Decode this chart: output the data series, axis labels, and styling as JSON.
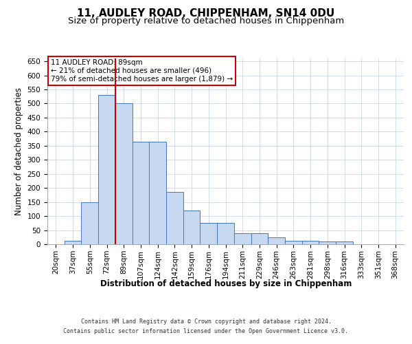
{
  "title": "11, AUDLEY ROAD, CHIPPENHAM, SN14 0DU",
  "subtitle": "Size of property relative to detached houses in Chippenham",
  "xlabel": "Distribution of detached houses by size in Chippenham",
  "ylabel": "Number of detached properties",
  "footer_line1": "Contains HM Land Registry data © Crown copyright and database right 2024.",
  "footer_line2": "Contains public sector information licensed under the Open Government Licence v3.0.",
  "categories": [
    "20sqm",
    "37sqm",
    "55sqm",
    "72sqm",
    "89sqm",
    "107sqm",
    "124sqm",
    "142sqm",
    "159sqm",
    "176sqm",
    "194sqm",
    "211sqm",
    "229sqm",
    "246sqm",
    "263sqm",
    "281sqm",
    "298sqm",
    "316sqm",
    "333sqm",
    "351sqm",
    "368sqm"
  ],
  "values": [
    0,
    12,
    150,
    530,
    500,
    365,
    365,
    185,
    120,
    75,
    75,
    38,
    38,
    25,
    12,
    12,
    10,
    10,
    0,
    0,
    0
  ],
  "bar_color": "#c6d9f1",
  "bar_edge_color": "#4472c4",
  "marker_color": "#cc0000",
  "annotation_text": "11 AUDLEY ROAD: 89sqm\n← 21% of detached houses are smaller (496)\n79% of semi-detached houses are larger (1,879) →",
  "annotation_box_color": "#ffffff",
  "annotation_box_edge": "#cc0000",
  "ylim": [
    0,
    660
  ],
  "yticks": [
    0,
    50,
    100,
    150,
    200,
    250,
    300,
    350,
    400,
    450,
    500,
    550,
    600,
    650
  ],
  "bg_color": "#ffffff",
  "grid_color": "#c8d8e8",
  "title_fontsize": 11,
  "subtitle_fontsize": 9.5,
  "axis_label_fontsize": 8.5,
  "tick_fontsize": 7.5,
  "footer_fontsize": 6,
  "annotation_fontsize": 7.5
}
